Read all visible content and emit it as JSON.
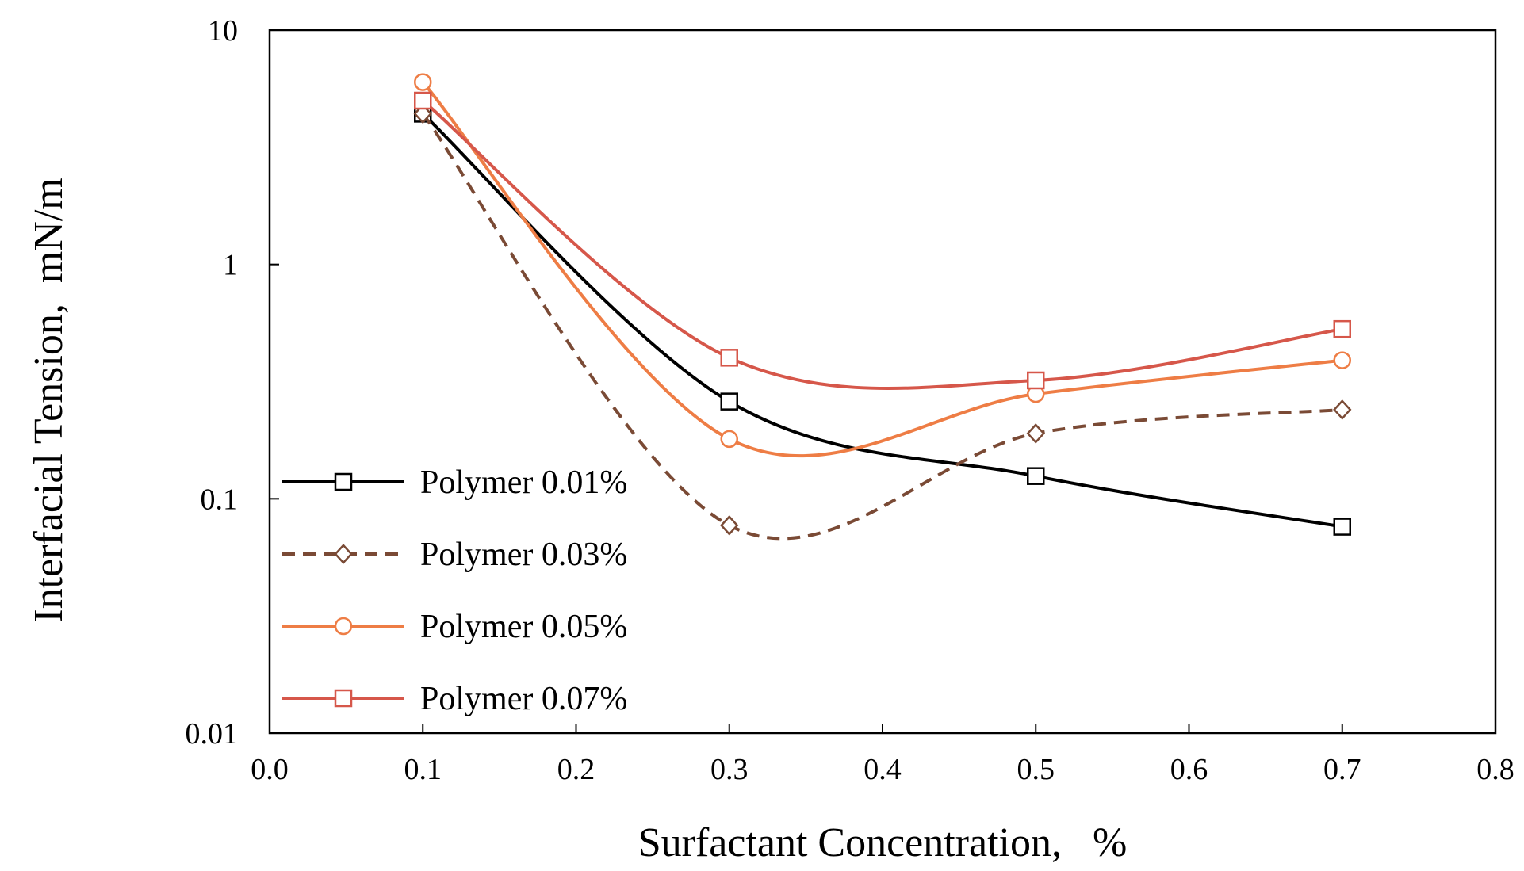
{
  "chart_data": {
    "type": "line",
    "title": "",
    "xlabel": "Surfactant Concentration,   %",
    "ylabel": "Interfacial Tension,  mN/m",
    "xlim": [
      0.0,
      0.8
    ],
    "ylim": [
      0.01,
      10
    ],
    "yscale": "log",
    "x_ticks": [
      "0.0",
      "0.1",
      "0.2",
      "0.3",
      "0.4",
      "0.5",
      "0.6",
      "0.7",
      "0.8"
    ],
    "y_ticks": [
      "10",
      "1",
      "0.1",
      "0.01"
    ],
    "legend_position": "left",
    "grid": false,
    "x": [
      0.1,
      0.3,
      0.5,
      0.7
    ],
    "series": [
      {
        "name": "Polymer 0.01%",
        "values": [
          4.4,
          0.26,
          0.125,
          0.076
        ],
        "color": "#000000",
        "marker": "square",
        "dash": "solid"
      },
      {
        "name": "Polymer 0.03%",
        "values": [
          4.4,
          0.077,
          0.19,
          0.24
        ],
        "color": "#7a4a35",
        "marker": "diamond",
        "dash": "dashed"
      },
      {
        "name": "Polymer 0.05%",
        "values": [
          6.0,
          0.18,
          0.28,
          0.39
        ],
        "color": "#ee7d45",
        "marker": "circle",
        "dash": "solid"
      },
      {
        "name": "Polymer 0.07%",
        "values": [
          5.0,
          0.4,
          0.32,
          0.53
        ],
        "color": "#d6574a",
        "marker": "square",
        "dash": "solid"
      }
    ]
  }
}
